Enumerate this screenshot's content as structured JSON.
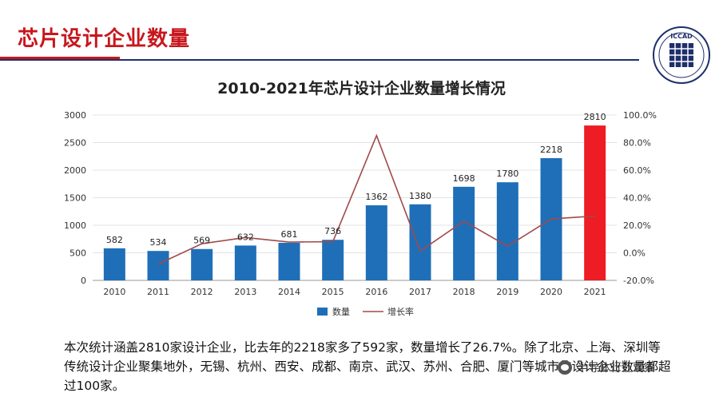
{
  "header": {
    "title": "芯片设计企业数量",
    "logo_text": "ICCAD"
  },
  "chart_data": {
    "type": "bar",
    "title": "2010-2021年芯片设计企业数量增长情况",
    "categories": [
      "2010",
      "2011",
      "2012",
      "2013",
      "2014",
      "2015",
      "2016",
      "2017",
      "2018",
      "2019",
      "2020",
      "2021"
    ],
    "series": [
      {
        "name": "数量",
        "kind": "bar",
        "axis": "left",
        "values": [
          582,
          534,
          569,
          632,
          681,
          736,
          1362,
          1380,
          1698,
          1780,
          2218,
          2810
        ],
        "colors": [
          "#1f6fb8",
          "#1f6fb8",
          "#1f6fb8",
          "#1f6fb8",
          "#1f6fb8",
          "#1f6fb8",
          "#1f6fb8",
          "#1f6fb8",
          "#1f6fb8",
          "#1f6fb8",
          "#1f6fb8",
          "#ee1c24"
        ]
      },
      {
        "name": "增长率",
        "kind": "line",
        "axis": "right",
        "color": "#a14a4a",
        "values": [
          null,
          -8.2,
          6.6,
          11.1,
          7.8,
          8.1,
          85.1,
          1.3,
          23.0,
          4.8,
          24.6,
          26.7
        ]
      }
    ],
    "data_labels": [
      "582",
      "534",
      "569",
      "632",
      "681",
      "736",
      "1362",
      "1380",
      "1698",
      "1780",
      "2218",
      "2810"
    ],
    "ylim_left": [
      0,
      3000
    ],
    "yticks_left": [
      "0",
      "500",
      "1000",
      "1500",
      "2000",
      "2500",
      "3000"
    ],
    "ylim_right": [
      -20,
      100
    ],
    "yticks_right": [
      "-20.0%",
      "0.0%",
      "20.0%",
      "40.0%",
      "60.0%",
      "80.0%",
      "100.0%"
    ],
    "grid": true,
    "legend": "bottom"
  },
  "body": {
    "text": "本次统计涵盖2810家设计企业，比去年的2218家多了592家，数量增长了26.7%。除了北京、上海、深圳等传统设计企业聚集地外，无锡、杭州、西安、成都、南京、武汉、苏州、合肥、厦门等城市的设计企业数量都超过100家。"
  },
  "watermark": {
    "text": "半导体行业观察"
  }
}
